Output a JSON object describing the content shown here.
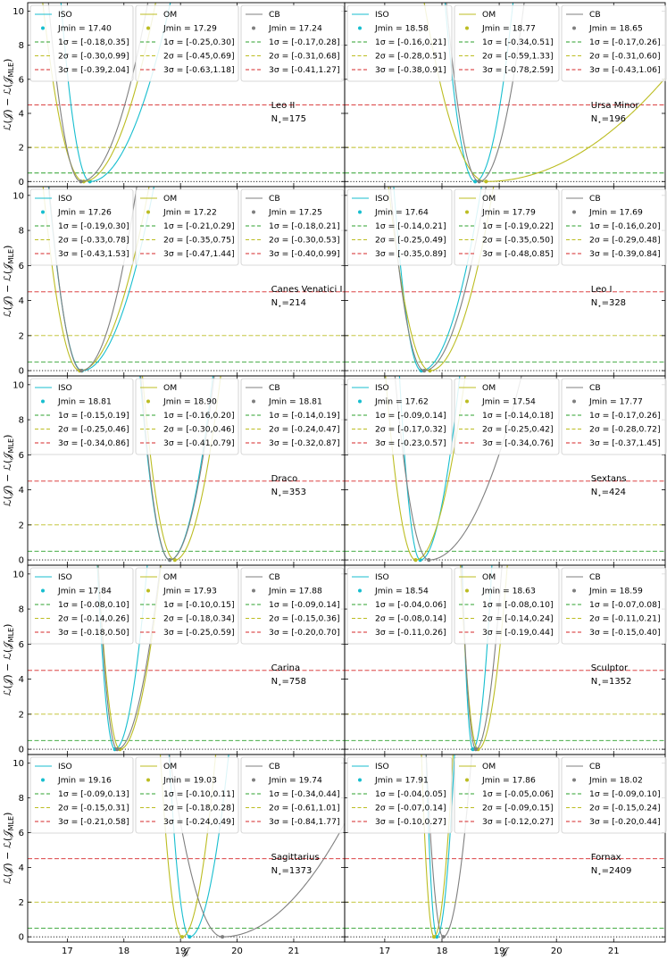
{
  "figure": {
    "xlabel": "𝒥",
    "ylabel_top": "ℒ(𝒥) − ℒ(𝒥",
    "ylabel_sub": "MLE",
    "ylabel_close": ")",
    "n_label": "N",
    "n_sub": "⋆",
    "sigma_symbol": "σ"
  },
  "chart_data": [
    {
      "type": "line",
      "name": "Leo II",
      "n": "175",
      "title": "Leo II",
      "annotation": "N⋆=175",
      "xlim": [
        16.3,
        21.9
      ],
      "ylim": [
        -0.3,
        10.5
      ],
      "xticks": [
        17,
        18,
        19,
        20,
        21
      ],
      "yticks": [
        0,
        2,
        4,
        6,
        8,
        10
      ],
      "reference_lines": [
        {
          "y": 0.5,
          "color": "#2ca02c"
        },
        {
          "y": 2.0,
          "color": "#bcbd22"
        },
        {
          "y": 4.5,
          "color": "#d62728"
        },
        {
          "y": 0,
          "color": "#000000",
          "style": "dotted"
        }
      ],
      "series": [
        {
          "name": "ISO",
          "color": "#17becf",
          "jmin": "17.40",
          "s1": "[-0.18,0.35]",
          "s2": "[-0.30,0.99]",
          "s3": "[-0.39,2.04]",
          "jmin_value": 17.4,
          "left_curv": 40.0,
          "right_curv": 5.2
        },
        {
          "name": "OM",
          "color": "#bcbd22",
          "jmin": "17.29",
          "s1": "[-0.25,0.30]",
          "s2": "[-0.45,0.69]",
          "s3": "[-0.63,1.18]",
          "jmin_value": 17.29,
          "left_curv": 20.0,
          "right_curv": 6.5
        },
        {
          "name": "CB",
          "color": "#7f7f7f",
          "jmin": "17.24",
          "s1": "[-0.17,0.28]",
          "s2": "[-0.31,0.68]",
          "s3": "[-0.41,1.27]",
          "jmin_value": 17.24,
          "left_curv": 32.0,
          "right_curv": 7.5
        }
      ]
    },
    {
      "type": "line",
      "name": "Ursa Minor",
      "n": "196",
      "title": "Ursa Minor",
      "annotation": "N⋆=196",
      "xlim": [
        16.3,
        21.9
      ],
      "ylim": [
        -0.3,
        10.5
      ],
      "xticks": [
        17,
        18,
        19,
        20,
        21
      ],
      "yticks": [
        0,
        2,
        4,
        6,
        8,
        10
      ],
      "reference_lines": [
        {
          "y": 0.5,
          "color": "#2ca02c"
        },
        {
          "y": 2.0,
          "color": "#bcbd22"
        },
        {
          "y": 4.5,
          "color": "#d62728"
        },
        {
          "y": 0,
          "color": "#000000",
          "style": "dotted"
        }
      ],
      "series": [
        {
          "name": "ISO",
          "color": "#17becf",
          "jmin": "18.58",
          "s1": "[-0.16,0.21]",
          "s2": "[-0.28,0.51]",
          "s3": "[-0.38,0.91]",
          "jmin_value": 18.58,
          "left_curv": 38.0,
          "right_curv": 24.0
        },
        {
          "name": "OM",
          "color": "#bcbd22",
          "jmin": "18.77",
          "s1": "[-0.34,0.51]",
          "s2": "[-0.59,1.33]",
          "s3": "[-0.78,2.59]",
          "jmin_value": 18.77,
          "left_curv": 9.0,
          "right_curv": 0.62
        },
        {
          "name": "CB",
          "color": "#7f7f7f",
          "jmin": "18.65",
          "s1": "[-0.17,0.26]",
          "s2": "[-0.31,0.60]",
          "s3": "[-0.43,1.06]",
          "jmin_value": 18.65,
          "left_curv": 32.0,
          "right_curv": 17.0
        }
      ]
    },
    {
      "type": "line",
      "name": "Canes Venatici I",
      "n": "214",
      "title": "Canes Venatici I",
      "annotation": "N⋆=214",
      "xlim": [
        16.3,
        21.9
      ],
      "ylim": [
        -0.3,
        10.5
      ],
      "xticks": [
        17,
        18,
        19,
        20,
        21
      ],
      "yticks": [
        0,
        2,
        4,
        6,
        8,
        10
      ],
      "reference_lines": [
        {
          "y": 0.5,
          "color": "#2ca02c"
        },
        {
          "y": 2.0,
          "color": "#bcbd22"
        },
        {
          "y": 4.5,
          "color": "#d62728"
        },
        {
          "y": 0,
          "color": "#000000",
          "style": "dotted"
        }
      ],
      "series": [
        {
          "name": "ISO",
          "color": "#17becf",
          "jmin": "17.26",
          "s1": "[-0.19,0.30]",
          "s2": "[-0.33,0.78]",
          "s3": "[-0.43,1.53]",
          "jmin_value": 17.26,
          "left_curv": 30.0,
          "right_curv": 6.5
        },
        {
          "name": "OM",
          "color": "#bcbd22",
          "jmin": "17.22",
          "s1": "[-0.21,0.29]",
          "s2": "[-0.35,0.75]",
          "s3": "[-0.47,1.44]",
          "jmin_value": 17.22,
          "left_curv": 25.0,
          "right_curv": 7.0
        },
        {
          "name": "CB",
          "color": "#7f7f7f",
          "jmin": "17.25",
          "s1": "[-0.18,0.21]",
          "s2": "[-0.30,0.53]",
          "s3": "[-0.40,0.99]",
          "jmin_value": 17.25,
          "left_curv": 32.0,
          "right_curv": 11.0
        }
      ]
    },
    {
      "type": "line",
      "name": "Leo I",
      "n": "328",
      "title": "Leo I",
      "annotation": "N⋆=328",
      "xlim": [
        16.3,
        21.9
      ],
      "ylim": [
        -0.3,
        10.5
      ],
      "xticks": [
        17,
        18,
        19,
        20,
        21
      ],
      "yticks": [
        0,
        2,
        4,
        6,
        8,
        10
      ],
      "reference_lines": [
        {
          "y": 0.5,
          "color": "#2ca02c"
        },
        {
          "y": 2.0,
          "color": "#bcbd22"
        },
        {
          "y": 4.5,
          "color": "#d62728"
        },
        {
          "y": 0,
          "color": "#000000",
          "style": "dotted"
        }
      ],
      "series": [
        {
          "name": "ISO",
          "color": "#17becf",
          "jmin": "17.64",
          "s1": "[-0.14,0.21]",
          "s2": "[-0.25,0.49]",
          "s3": "[-0.35,0.89]",
          "jmin_value": 17.64,
          "left_curv": 45.0,
          "right_curv": 9.5
        },
        {
          "name": "OM",
          "color": "#bcbd22",
          "jmin": "17.79",
          "s1": "[-0.19,0.22]",
          "s2": "[-0.35,0.50]",
          "s3": "[-0.48,0.85]",
          "jmin_value": 17.79,
          "left_curv": 20.0,
          "right_curv": 8.5
        },
        {
          "name": "CB",
          "color": "#7f7f7f",
          "jmin": "17.69",
          "s1": "[-0.16,0.20]",
          "s2": "[-0.29,0.48]",
          "s3": "[-0.39,0.84]",
          "jmin_value": 17.69,
          "left_curv": 30.0,
          "right_curv": 9.0
        }
      ]
    },
    {
      "type": "line",
      "name": "Draco",
      "n": "353",
      "title": "Draco",
      "annotation": "N⋆=353",
      "xlim": [
        16.3,
        21.9
      ],
      "ylim": [
        -0.3,
        10.5
      ],
      "xticks": [
        17,
        18,
        19,
        20,
        21
      ],
      "yticks": [
        0,
        2,
        4,
        6,
        8,
        10
      ],
      "reference_lines": [
        {
          "y": 0.5,
          "color": "#2ca02c"
        },
        {
          "y": 2.0,
          "color": "#bcbd22"
        },
        {
          "y": 4.5,
          "color": "#d62728"
        },
        {
          "y": 0,
          "color": "#000000",
          "style": "dotted"
        }
      ],
      "series": [
        {
          "name": "ISO",
          "color": "#17becf",
          "jmin": "18.81",
          "s1": "[-0.15,0.19]",
          "s2": "[-0.25,0.46]",
          "s3": "[-0.34,0.86]",
          "jmin_value": 18.81,
          "left_curv": 38.0,
          "right_curv": 18.0
        },
        {
          "name": "OM",
          "color": "#bcbd22",
          "jmin": "18.90",
          "s1": "[-0.16,0.20]",
          "s2": "[-0.30,0.46]",
          "s3": "[-0.41,0.79]",
          "jmin_value": 18.9,
          "left_curv": 32.0,
          "right_curv": 16.0
        },
        {
          "name": "CB",
          "color": "#7f7f7f",
          "jmin": "18.81",
          "s1": "[-0.14,0.19]",
          "s2": "[-0.24,0.47]",
          "s3": "[-0.32,0.87]",
          "jmin_value": 18.81,
          "left_curv": 40.0,
          "right_curv": 17.0
        }
      ]
    },
    {
      "type": "line",
      "name": "Sextans",
      "n": "424",
      "title": "Sextans",
      "annotation": "N⋆=424",
      "xlim": [
        16.3,
        21.9
      ],
      "ylim": [
        -0.3,
        10.5
      ],
      "xticks": [
        17,
        18,
        19,
        20,
        21
      ],
      "yticks": [
        0,
        2,
        4,
        6,
        8,
        10
      ],
      "reference_lines": [
        {
          "y": 0.5,
          "color": "#2ca02c"
        },
        {
          "y": 2.0,
          "color": "#bcbd22"
        },
        {
          "y": 4.5,
          "color": "#d62728"
        },
        {
          "y": 0,
          "color": "#000000",
          "style": "dotted"
        }
      ],
      "series": [
        {
          "name": "ISO",
          "color": "#17becf",
          "jmin": "17.62",
          "s1": "[-0.09,0.14]",
          "s2": "[-0.17,0.32]",
          "s3": "[-0.23,0.57]",
          "jmin_value": 17.62,
          "left_curv": 80.0,
          "right_curv": 22.0
        },
        {
          "name": "OM",
          "color": "#bcbd22",
          "jmin": "17.54",
          "s1": "[-0.14,0.18]",
          "s2": "[-0.25,0.42]",
          "s3": "[-0.34,0.76]",
          "jmin_value": 17.54,
          "left_curv": 38.0,
          "right_curv": 14.0
        },
        {
          "name": "CB",
          "color": "#7f7f7f",
          "jmin": "17.77",
          "s1": "[-0.17,0.26]",
          "s2": "[-0.28,0.72]",
          "s3": "[-0.37,1.45]",
          "jmin_value": 17.77,
          "left_curv": 30.0,
          "right_curv": 4.0
        }
      ]
    },
    {
      "type": "line",
      "name": "Carina",
      "n": "758",
      "title": "Carina",
      "annotation": "N⋆=758",
      "xlim": [
        16.3,
        21.9
      ],
      "ylim": [
        -0.3,
        10.5
      ],
      "xticks": [
        17,
        18,
        19,
        20,
        21
      ],
      "yticks": [
        0,
        2,
        4,
        6,
        8,
        10
      ],
      "reference_lines": [
        {
          "y": 0.5,
          "color": "#2ca02c"
        },
        {
          "y": 2.0,
          "color": "#bcbd22"
        },
        {
          "y": 4.5,
          "color": "#d62728"
        },
        {
          "y": 0,
          "color": "#000000",
          "style": "dotted"
        }
      ],
      "series": [
        {
          "name": "ISO",
          "color": "#17becf",
          "jmin": "17.84",
          "s1": "[-0.08,0.10]",
          "s2": "[-0.14,0.26]",
          "s3": "[-0.18,0.50]",
          "jmin_value": 17.84,
          "left_curv": 110.0,
          "right_curv": 32.0
        },
        {
          "name": "OM",
          "color": "#bcbd22",
          "jmin": "17.93",
          "s1": "[-0.10,0.15]",
          "s2": "[-0.18,0.34]",
          "s3": "[-0.25,0.59]",
          "jmin_value": 17.93,
          "left_curv": 70.0,
          "right_curv": 20.0
        },
        {
          "name": "CB",
          "color": "#7f7f7f",
          "jmin": "17.88",
          "s1": "[-0.09,0.14]",
          "s2": "[-0.15,0.36]",
          "s3": "[-0.20,0.70]",
          "jmin_value": 17.88,
          "left_curv": 95.0,
          "right_curv": 18.0
        }
      ]
    },
    {
      "type": "line",
      "name": "Sculptor",
      "n": "1352",
      "title": "Sculptor",
      "annotation": "N⋆=1352",
      "xlim": [
        16.3,
        21.9
      ],
      "ylim": [
        -0.3,
        10.5
      ],
      "xticks": [
        17,
        18,
        19,
        20,
        21
      ],
      "yticks": [
        0,
        2,
        4,
        6,
        8,
        10
      ],
      "reference_lines": [
        {
          "y": 0.5,
          "color": "#2ca02c"
        },
        {
          "y": 2.0,
          "color": "#bcbd22"
        },
        {
          "y": 4.5,
          "color": "#d62728"
        },
        {
          "y": 0,
          "color": "#000000",
          "style": "dotted"
        }
      ],
      "series": [
        {
          "name": "ISO",
          "color": "#17becf",
          "jmin": "18.54",
          "s1": "[-0.04,0.06]",
          "s2": "[-0.08,0.14]",
          "s3": "[-0.11,0.26]",
          "jmin_value": 18.54,
          "left_curv": 300.0,
          "right_curv": 95.0
        },
        {
          "name": "OM",
          "color": "#bcbd22",
          "jmin": "18.63",
          "s1": "[-0.08,0.10]",
          "s2": "[-0.14,0.24]",
          "s3": "[-0.19,0.44]",
          "jmin_value": 18.63,
          "left_curv": 110.0,
          "right_curv": 40.0
        },
        {
          "name": "CB",
          "color": "#7f7f7f",
          "jmin": "18.59",
          "s1": "[-0.07,0.08]",
          "s2": "[-0.11,0.21]",
          "s3": "[-0.15,0.40]",
          "jmin_value": 18.59,
          "left_curv": 170.0,
          "right_curv": 50.0
        }
      ]
    },
    {
      "type": "line",
      "name": "Sagittarius",
      "n": "1373",
      "title": "Sagittarius",
      "annotation": "N⋆=1373",
      "xlim": [
        16.3,
        21.9
      ],
      "ylim": [
        -0.3,
        10.5
      ],
      "xticks": [
        17,
        18,
        19,
        20,
        21
      ],
      "yticks": [
        0,
        2,
        4,
        6,
        8,
        10
      ],
      "reference_lines": [
        {
          "y": 0.5,
          "color": "#2ca02c"
        },
        {
          "y": 2.0,
          "color": "#bcbd22"
        },
        {
          "y": 4.5,
          "color": "#d62728"
        },
        {
          "y": 0,
          "color": "#000000",
          "style": "dotted"
        }
      ],
      "series": [
        {
          "name": "ISO",
          "color": "#17becf",
          "jmin": "19.16",
          "s1": "[-0.09,0.13]",
          "s2": "[-0.15,0.31]",
          "s3": "[-0.21,0.58]",
          "jmin_value": 19.16,
          "left_curv": 80.0,
          "right_curv": 22.0
        },
        {
          "name": "OM",
          "color": "#bcbd22",
          "jmin": "19.03",
          "s1": "[-0.10,0.11]",
          "s2": "[-0.18,0.28]",
          "s3": "[-0.24,0.49]",
          "jmin_value": 19.03,
          "left_curv": 70.0,
          "right_curv": 30.0
        },
        {
          "name": "CB",
          "color": "#7f7f7f",
          "jmin": "19.74",
          "s1": "[-0.34,0.44]",
          "s2": "[-0.61,1.01]",
          "s3": "[-0.84,1.77]",
          "jmin_value": 19.74,
          "left_curv": 12.0,
          "right_curv": 1.4
        }
      ]
    },
    {
      "type": "line",
      "name": "Fornax",
      "n": "2409",
      "title": "Fornax",
      "annotation": "N⋆=2409",
      "xlim": [
        16.3,
        21.9
      ],
      "ylim": [
        -0.3,
        10.5
      ],
      "xticks": [
        17,
        18,
        19,
        20,
        21
      ],
      "yticks": [
        0,
        2,
        4,
        6,
        8,
        10
      ],
      "reference_lines": [
        {
          "y": 0.5,
          "color": "#2ca02c"
        },
        {
          "y": 2.0,
          "color": "#bcbd22"
        },
        {
          "y": 4.5,
          "color": "#d62728"
        },
        {
          "y": 0,
          "color": "#000000",
          "style": "dotted"
        }
      ],
      "series": [
        {
          "name": "ISO",
          "color": "#17becf",
          "jmin": "17.91",
          "s1": "[-0.04,0.05]",
          "s2": "[-0.07,0.14]",
          "s3": "[-0.10,0.27]",
          "jmin_value": 17.91,
          "left_curv": 300.0,
          "right_curv": 110.0
        },
        {
          "name": "OM",
          "color": "#bcbd22",
          "jmin": "17.86",
          "s1": "[-0.05,0.06]",
          "s2": "[-0.09,0.15]",
          "s3": "[-0.12,0.27]",
          "jmin_value": 17.86,
          "left_curv": 220.0,
          "right_curv": 95.0
        },
        {
          "name": "CB",
          "color": "#7f7f7f",
          "jmin": "18.02",
          "s1": "[-0.09,0.10]",
          "s2": "[-0.15,0.24]",
          "s3": "[-0.20,0.44]",
          "jmin_value": 18.02,
          "left_curv": 120.0,
          "right_curv": 42.0
        }
      ]
    }
  ]
}
